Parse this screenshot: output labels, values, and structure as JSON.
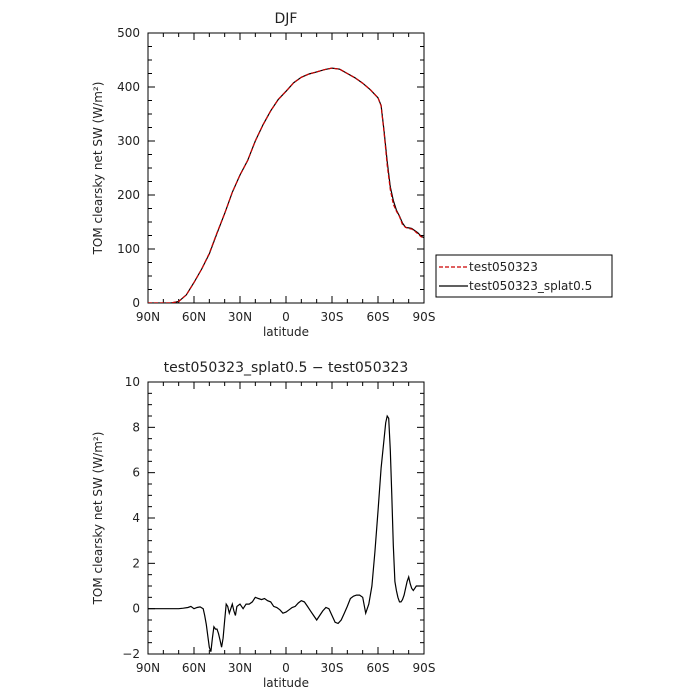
{
  "chart_data": [
    {
      "type": "line",
      "title": "DJF",
      "xlabel": "latitude",
      "ylabel": "TOM clearsky net SW (W/m²)",
      "xlim": [
        90,
        -90
      ],
      "ylim": [
        0,
        500
      ],
      "x_ticks": [
        90,
        60,
        30,
        0,
        -30,
        -60,
        -90
      ],
      "x_tick_labels": [
        "90N",
        "60N",
        "30N",
        "0",
        "30S",
        "60S",
        "90S"
      ],
      "y_ticks": [
        0,
        100,
        200,
        300,
        400,
        500
      ],
      "y_tick_labels": [
        "0",
        "100",
        "200",
        "300",
        "400",
        "500"
      ],
      "legend": {
        "placement": "right",
        "entries": [
          "test050323",
          "test050323_splat0.5"
        ]
      },
      "series": [
        {
          "name": "test050323",
          "color": "#cc0000",
          "dashed": true,
          "x": [
            90,
            85,
            80,
            75,
            70,
            65,
            60,
            55,
            50,
            45,
            40,
            35,
            30,
            25,
            20,
            15,
            10,
            5,
            0,
            -5,
            -10,
            -15,
            -20,
            -25,
            -30,
            -35,
            -40,
            -45,
            -50,
            -55,
            -60,
            -62,
            -64,
            -66,
            -68,
            -70,
            -72,
            -74,
            -76,
            -78,
            -80,
            -82,
            -84,
            -86,
            -88,
            -90
          ],
          "y": [
            0,
            0,
            0,
            0,
            3,
            15,
            38,
            63,
            92,
            130,
            166,
            205,
            237,
            264,
            300,
            330,
            356,
            377,
            392,
            408,
            418,
            424,
            428,
            432,
            435,
            433,
            425,
            417,
            407,
            395,
            380,
            365,
            315,
            255,
            210,
            183,
            170,
            160,
            145,
            140,
            138,
            137,
            133,
            128,
            123,
            120
          ]
        },
        {
          "name": "test050323_splat0.5",
          "color": "#000000",
          "dashed": false,
          "x": [
            90,
            85,
            80,
            75,
            70,
            65,
            60,
            55,
            50,
            45,
            40,
            35,
            30,
            25,
            20,
            15,
            10,
            5,
            0,
            -5,
            -10,
            -15,
            -20,
            -25,
            -30,
            -35,
            -40,
            -45,
            -50,
            -55,
            -60,
            -62,
            -64,
            -66,
            -68,
            -70,
            -72,
            -74,
            -76,
            -78,
            -80,
            -82,
            -84,
            -86,
            -88,
            -90
          ],
          "y": [
            0,
            0,
            0,
            0,
            3,
            15,
            38,
            63,
            91,
            129,
            166,
            205,
            237,
            264,
            300,
            330,
            356,
            377,
            392,
            408,
            418,
            424,
            428,
            432,
            435,
            433,
            425,
            417,
            407,
            395,
            380,
            366,
            318,
            262,
            215,
            190,
            172,
            161,
            148,
            140,
            139,
            138,
            134,
            130,
            124,
            121
          ]
        }
      ]
    },
    {
      "type": "line",
      "title": "test050323_splat0.5 − test050323",
      "xlabel": "latitude",
      "ylabel": "TOM clearsky net SW (W/m²)",
      "xlim": [
        90,
        -90
      ],
      "ylim": [
        -2,
        10
      ],
      "x_ticks": [
        90,
        60,
        30,
        0,
        -30,
        -60,
        -90
      ],
      "x_tick_labels": [
        "90N",
        "60N",
        "30N",
        "0",
        "30S",
        "60S",
        "90S"
      ],
      "y_ticks": [
        -2,
        0,
        2,
        4,
        6,
        8,
        10
      ],
      "y_tick_labels": [
        "−2",
        "0",
        "2",
        "4",
        "6",
        "8",
        "10"
      ],
      "series": [
        {
          "color": "#000000",
          "dashed": false,
          "x": [
            90,
            80,
            70,
            67,
            64,
            62,
            60,
            58,
            56,
            54,
            53,
            52,
            51,
            50,
            49,
            48,
            47,
            46,
            45,
            44,
            43,
            42,
            41,
            40,
            39,
            38,
            37,
            36,
            35,
            34,
            33,
            32,
            30,
            28,
            26,
            24,
            22,
            20,
            18,
            16,
            14,
            12,
            10,
            8,
            6,
            4,
            2,
            0,
            -2,
            -4,
            -6,
            -8,
            -10,
            -12,
            -14,
            -16,
            -18,
            -20,
            -22,
            -24,
            -26,
            -28,
            -30,
            -32,
            -34,
            -36,
            -38,
            -40,
            -42,
            -44,
            -46,
            -48,
            -50,
            -52,
            -54,
            -56,
            -58,
            -60,
            -62,
            -64,
            -65,
            -66,
            -67,
            -68,
            -69,
            -70,
            -71,
            -72,
            -73,
            -74,
            -75,
            -76,
            -77,
            -78,
            -79,
            -80,
            -81,
            -82,
            -83,
            -84,
            -85,
            -86,
            -87,
            -88,
            -89,
            -90
          ],
          "y": [
            0,
            0,
            0,
            0.02,
            0.05,
            0.1,
            0,
            0.05,
            0.08,
            0,
            -0.3,
            -0.7,
            -1.2,
            -1.7,
            -1.9,
            -1.3,
            -0.8,
            -0.9,
            -0.9,
            -1.1,
            -1.4,
            -1.7,
            -1.3,
            -0.5,
            0.2,
            0.1,
            -0.2,
            0.0,
            0.2,
            -0.1,
            -0.3,
            0.1,
            0.2,
            0.0,
            0.2,
            0.2,
            0.3,
            0.5,
            0.45,
            0.4,
            0.45,
            0.35,
            0.3,
            0.1,
            0.05,
            -0.05,
            -0.2,
            -0.15,
            -0.05,
            0.05,
            0.1,
            0.25,
            0.35,
            0.3,
            0.1,
            -0.1,
            -0.3,
            -0.5,
            -0.3,
            -0.1,
            0.05,
            0.0,
            -0.3,
            -0.6,
            -0.65,
            -0.5,
            -0.2,
            0.1,
            0.45,
            0.55,
            0.6,
            0.6,
            0.5,
            -0.2,
            0.2,
            1.0,
            2.5,
            4.3,
            6.2,
            7.5,
            8.2,
            8.5,
            8.4,
            7.0,
            5.0,
            2.8,
            1.2,
            0.8,
            0.5,
            0.3,
            0.3,
            0.4,
            0.6,
            0.9,
            1.2,
            1.4,
            1.1,
            0.9,
            0.8,
            0.9,
            1.0,
            1.0,
            1.0,
            1.0,
            1.0,
            1.0
          ]
        }
      ]
    }
  ]
}
